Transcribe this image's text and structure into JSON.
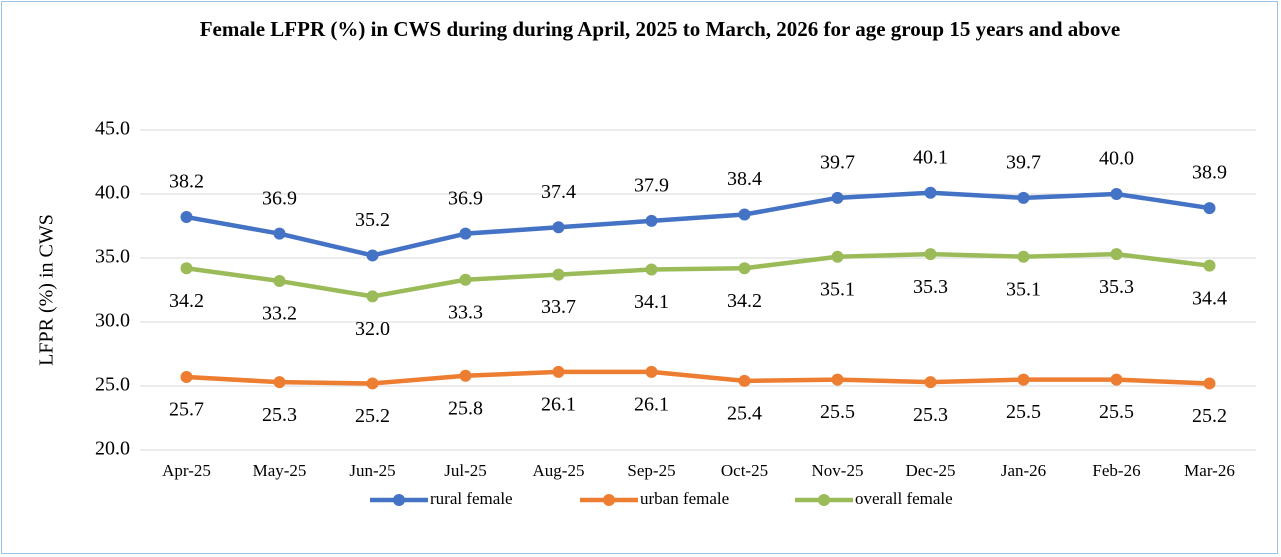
{
  "chart_data": {
    "type": "line",
    "title": "Female LFPR (%) in CWS during during April, 2025 to March, 2026 for age group 15 years and above",
    "y_label": "LFPR (%) in CWS",
    "categories": [
      "Apr-25",
      "May-25",
      "Jun-25",
      "Jul-25",
      "Aug-25",
      "Sep-25",
      "Oct-25",
      "Nov-25",
      "Dec-25",
      "Jan-26",
      "Feb-26",
      "Mar-26"
    ],
    "series": [
      {
        "name": "rural female",
        "color": "#4472c4",
        "values": [
          38.2,
          36.9,
          35.2,
          36.9,
          37.4,
          37.9,
          38.4,
          39.7,
          40.1,
          39.7,
          40.0,
          38.9
        ],
        "value_labels": [
          "38.2",
          "36.9",
          "35.2",
          "36.9",
          "37.4",
          "37.9",
          "38.4",
          "39.7",
          "40.1",
          "39.7",
          "40.0",
          "38.9"
        ]
      },
      {
        "name": "urban female",
        "color": "#ed7d31",
        "values": [
          25.7,
          25.3,
          25.2,
          25.8,
          26.1,
          26.1,
          25.4,
          25.5,
          25.3,
          25.5,
          25.5,
          25.2
        ],
        "value_labels": [
          "25.7",
          "25.3",
          "25.2",
          "25.8",
          "26.1",
          "26.1",
          "25.4",
          "25.5",
          "25.3",
          "25.5",
          "25.5",
          "25.2"
        ]
      },
      {
        "name": "overall female",
        "color": "#9bbb59",
        "values": [
          34.2,
          33.2,
          32.0,
          33.3,
          33.7,
          34.1,
          34.2,
          35.1,
          35.3,
          35.1,
          35.3,
          34.4
        ],
        "value_labels": [
          "34.2",
          "33.2",
          "32.0",
          "33.3",
          "33.7",
          "34.1",
          "34.2",
          "35.1",
          "35.3",
          "35.1",
          "35.3",
          "34.4"
        ]
      }
    ],
    "ylim": [
      20,
      45
    ],
    "yticks": [
      {
        "value": 20,
        "label": "20.0"
      },
      {
        "value": 25,
        "label": "25.0"
      },
      {
        "value": 30,
        "label": "30.0"
      },
      {
        "value": 35,
        "label": "35.0"
      },
      {
        "value": 40,
        "label": "40.0"
      },
      {
        "value": 45,
        "label": "45.0"
      }
    ],
    "grid": true,
    "legend": "bottom"
  }
}
